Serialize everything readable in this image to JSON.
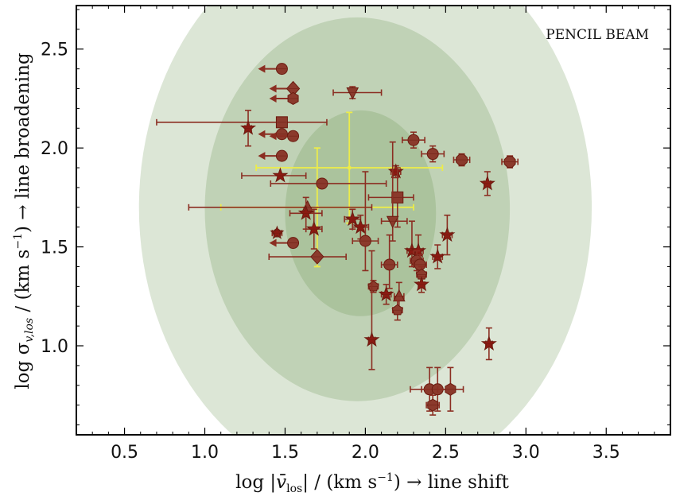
{
  "chart_data": {
    "type": "scatter",
    "annotation": "PENCIL BEAM",
    "xlabel_parts": [
      "log |",
      "v̄",
      "los",
      "| / (km s",
      "−1",
      ") → line shift"
    ],
    "ylabel_parts": [
      "log σ",
      "v,los",
      " / (km s",
      "−1",
      ")  → line broadening"
    ],
    "xlim": [
      0.2,
      3.9
    ],
    "ylim": [
      0.55,
      2.72
    ],
    "xticks": [
      0.5,
      1.0,
      1.5,
      2.0,
      2.5,
      3.0,
      3.5
    ],
    "yticks": [
      1.0,
      1.5,
      2.0,
      2.5
    ],
    "xtick_labels": [
      "0.5",
      "1.0",
      "1.5",
      "2.0",
      "2.5",
      "3.0",
      "3.5"
    ],
    "ytick_labels": [
      "1.0",
      "1.5",
      "2.0",
      "2.5"
    ],
    "grid": false,
    "colors": {
      "marker_fill": "#8b3a2c",
      "marker_edge": "#6b1b10",
      "errorbar": "#8b2e22",
      "star": "#8b1a12",
      "yellow": "#ecec4a",
      "contour": "#5e8e46"
    },
    "contours": [
      {
        "level": "outer",
        "cx": 2.0,
        "cy": 1.7,
        "rx": 1.41,
        "ry": 1.42,
        "opacity": 0.22
      },
      {
        "level": "middle",
        "cx": 1.95,
        "cy": 1.69,
        "rx": 0.95,
        "ry": 0.97,
        "opacity": 0.22
      },
      {
        "level": "inner",
        "cx": 1.97,
        "cy": 1.67,
        "rx": 0.47,
        "ry": 0.52,
        "opacity": 0.22
      }
    ],
    "yellow_points": [
      {
        "x": 1.9,
        "y": 1.9,
        "xerr": [
          0.58,
          0.58
        ],
        "yerr": [
          0.28,
          0.28
        ]
      },
      {
        "x": 1.7,
        "y": 1.7,
        "xerr": [
          0.6,
          0.6
        ],
        "yerr": [
          0.3,
          0.3
        ]
      }
    ],
    "points": [
      {
        "x": 1.48,
        "y": 2.4,
        "marker": "circle",
        "upper_limit": true
      },
      {
        "x": 1.55,
        "y": 2.3,
        "marker": "diamond",
        "upper_limit": true
      },
      {
        "x": 1.55,
        "y": 2.25,
        "marker": "hexagon",
        "upper_limit": true
      },
      {
        "x": 1.48,
        "y": 2.13,
        "marker": "square",
        "xerr": [
          0.78,
          0.28
        ]
      },
      {
        "x": 1.27,
        "y": 2.1,
        "marker": "star",
        "xerr": [
          0.02,
          0.02
        ],
        "yerr": [
          0.09,
          0.09
        ]
      },
      {
        "x": 1.48,
        "y": 2.07,
        "marker": "circle",
        "upper_limit": true
      },
      {
        "x": 1.55,
        "y": 2.06,
        "marker": "circle",
        "upper_limit": true
      },
      {
        "x": 1.48,
        "y": 1.96,
        "marker": "circle",
        "upper_limit": true
      },
      {
        "x": 1.47,
        "y": 1.86,
        "marker": "star",
        "xerr": [
          0.24,
          0.16
        ]
      },
      {
        "x": 1.73,
        "y": 1.82,
        "marker": "circle",
        "xerr": [
          0.32,
          0.4
        ]
      },
      {
        "x": 1.64,
        "y": 1.7,
        "marker": "triangle_up",
        "xerr": [
          0.74,
          0.4
        ]
      },
      {
        "x": 1.63,
        "y": 1.67,
        "marker": "star",
        "xerr": [
          0.1,
          0.1
        ],
        "yerr": [
          0.08,
          0.08
        ]
      },
      {
        "x": 1.68,
        "y": 1.59,
        "marker": "star",
        "xerr": [
          0.05,
          0.05
        ],
        "yerr": [
          0.1,
          0.1
        ]
      },
      {
        "x": 1.45,
        "y": 1.57,
        "marker": "star_pentagon",
        "xerr": [
          0.03,
          0.03
        ]
      },
      {
        "x": 1.55,
        "y": 1.52,
        "marker": "circle",
        "upper_limit": true
      },
      {
        "x": 1.7,
        "y": 1.45,
        "marker": "diamond",
        "xerr": [
          0.3,
          0.18
        ]
      },
      {
        "x": 1.92,
        "y": 2.28,
        "marker": "triangle_down",
        "xerr": [
          0.12,
          0.18
        ],
        "yerr": [
          0.03,
          0.03
        ]
      },
      {
        "x": 1.92,
        "y": 1.64,
        "marker": "star",
        "xerr": [
          0.05,
          0.05
        ],
        "yerr": [
          0.05,
          0.05
        ]
      },
      {
        "x": 1.97,
        "y": 1.6,
        "marker": "star",
        "xerr": [
          0.05,
          0.05
        ],
        "yerr": [
          0.06,
          0.06
        ]
      },
      {
        "x": 2.0,
        "y": 1.53,
        "marker": "circle",
        "xerr": [
          0.08,
          0.08
        ],
        "yerr": [
          0.15,
          0.35
        ]
      },
      {
        "x": 2.19,
        "y": 1.88,
        "marker": "star",
        "xerr": [
          0.03,
          0.03
        ],
        "yerr": [
          0.03,
          0.03
        ]
      },
      {
        "x": 2.2,
        "y": 1.75,
        "marker": "square",
        "xerr": [
          0.18,
          0.1
        ],
        "yerr": [
          0.15,
          0.15
        ]
      },
      {
        "x": 2.17,
        "y": 1.63,
        "marker": "triangle_down",
        "xerr": [
          0.07,
          0.09
        ],
        "yerr": [
          0.1,
          0.4
        ]
      },
      {
        "x": 2.15,
        "y": 1.41,
        "marker": "circle",
        "xerr": [
          0.05,
          0.05
        ],
        "yerr": [
          0.12,
          0.15
        ]
      },
      {
        "x": 2.05,
        "y": 1.3,
        "marker": "pentagon",
        "xerr": [
          0.03,
          0.03
        ],
        "yerr": [
          0.03,
          0.03
        ]
      },
      {
        "x": 2.13,
        "y": 1.26,
        "marker": "star",
        "xerr": [
          0.03,
          0.03
        ],
        "yerr": [
          0.05,
          0.05
        ]
      },
      {
        "x": 2.21,
        "y": 1.25,
        "marker": "triangle_up",
        "xerr": [
          0.03,
          0.03
        ],
        "yerr": [
          0.07,
          0.07
        ]
      },
      {
        "x": 2.2,
        "y": 1.18,
        "marker": "pentagon",
        "xerr": [
          0.03,
          0.03
        ],
        "yerr": [
          0.05,
          0.05
        ]
      },
      {
        "x": 2.04,
        "y": 1.03,
        "marker": "star",
        "xerr": [
          0.02,
          0.02
        ],
        "yerr": [
          0.15,
          0.45
        ]
      },
      {
        "x": 2.3,
        "y": 2.04,
        "marker": "circle",
        "xerr": [
          0.07,
          0.07
        ],
        "yerr": [
          0.04,
          0.04
        ]
      },
      {
        "x": 2.42,
        "y": 1.97,
        "marker": "circle",
        "xerr": [
          0.07,
          0.07
        ],
        "yerr": [
          0.04,
          0.04
        ]
      },
      {
        "x": 2.6,
        "y": 1.94,
        "marker": "octagon",
        "xerr": [
          0.05,
          0.05
        ],
        "yerr": [
          0.03,
          0.03
        ]
      },
      {
        "x": 2.9,
        "y": 1.93,
        "marker": "octagon",
        "xerr": [
          0.05,
          0.05
        ],
        "yerr": [
          0.03,
          0.03
        ]
      },
      {
        "x": 2.76,
        "y": 1.82,
        "marker": "star",
        "xerr": [
          0.02,
          0.02
        ],
        "yerr": [
          0.06,
          0.06
        ]
      },
      {
        "x": 2.29,
        "y": 1.48,
        "marker": "star",
        "xerr": [
          0.03,
          0.03
        ],
        "yerr": [
          0.08,
          0.15
        ]
      },
      {
        "x": 2.33,
        "y": 1.48,
        "marker": "star",
        "xerr": [
          0.03,
          0.03
        ],
        "yerr": [
          0.08,
          0.08
        ]
      },
      {
        "x": 2.32,
        "y": 1.43,
        "marker": "circle",
        "xerr": [
          0.04,
          0.04
        ],
        "yerr": [
          0.05,
          0.05
        ]
      },
      {
        "x": 2.34,
        "y": 1.41,
        "marker": "circle",
        "xerr": [
          0.04,
          0.04
        ],
        "yerr": [
          0.05,
          0.05
        ]
      },
      {
        "x": 2.35,
        "y": 1.36,
        "marker": "pentagon",
        "xerr": [
          0.03,
          0.03
        ],
        "yerr": [
          0.04,
          0.04
        ]
      },
      {
        "x": 2.35,
        "y": 1.31,
        "marker": "star",
        "xerr": [
          0.02,
          0.02
        ],
        "yerr": [
          0.04,
          0.04
        ]
      },
      {
        "x": 2.45,
        "y": 1.45,
        "marker": "star",
        "xerr": [
          0.03,
          0.03
        ],
        "yerr": [
          0.06,
          0.06
        ]
      },
      {
        "x": 2.51,
        "y": 1.56,
        "marker": "star",
        "xerr": [
          0.03,
          0.03
        ],
        "yerr": [
          0.1,
          0.1
        ]
      },
      {
        "x": 2.77,
        "y": 1.01,
        "marker": "star",
        "xerr": [
          0.02,
          0.02
        ],
        "yerr": [
          0.08,
          0.08
        ]
      },
      {
        "x": 2.4,
        "y": 0.78,
        "marker": "circle",
        "xerr": [
          0.12,
          0.12
        ],
        "yerr": [
          0.11,
          0.11
        ]
      },
      {
        "x": 2.45,
        "y": 0.78,
        "marker": "circle",
        "xerr": [
          0.1,
          0.1
        ],
        "yerr": [
          0.11,
          0.11
        ]
      },
      {
        "x": 2.53,
        "y": 0.78,
        "marker": "hexagon",
        "xerr": [
          0.08,
          0.08
        ],
        "yerr": [
          0.11,
          0.11
        ]
      },
      {
        "x": 2.42,
        "y": 0.7,
        "marker": "hexagon",
        "xerr": [
          0.04,
          0.04
        ],
        "yerr": [
          0.05,
          0.05
        ]
      }
    ]
  }
}
